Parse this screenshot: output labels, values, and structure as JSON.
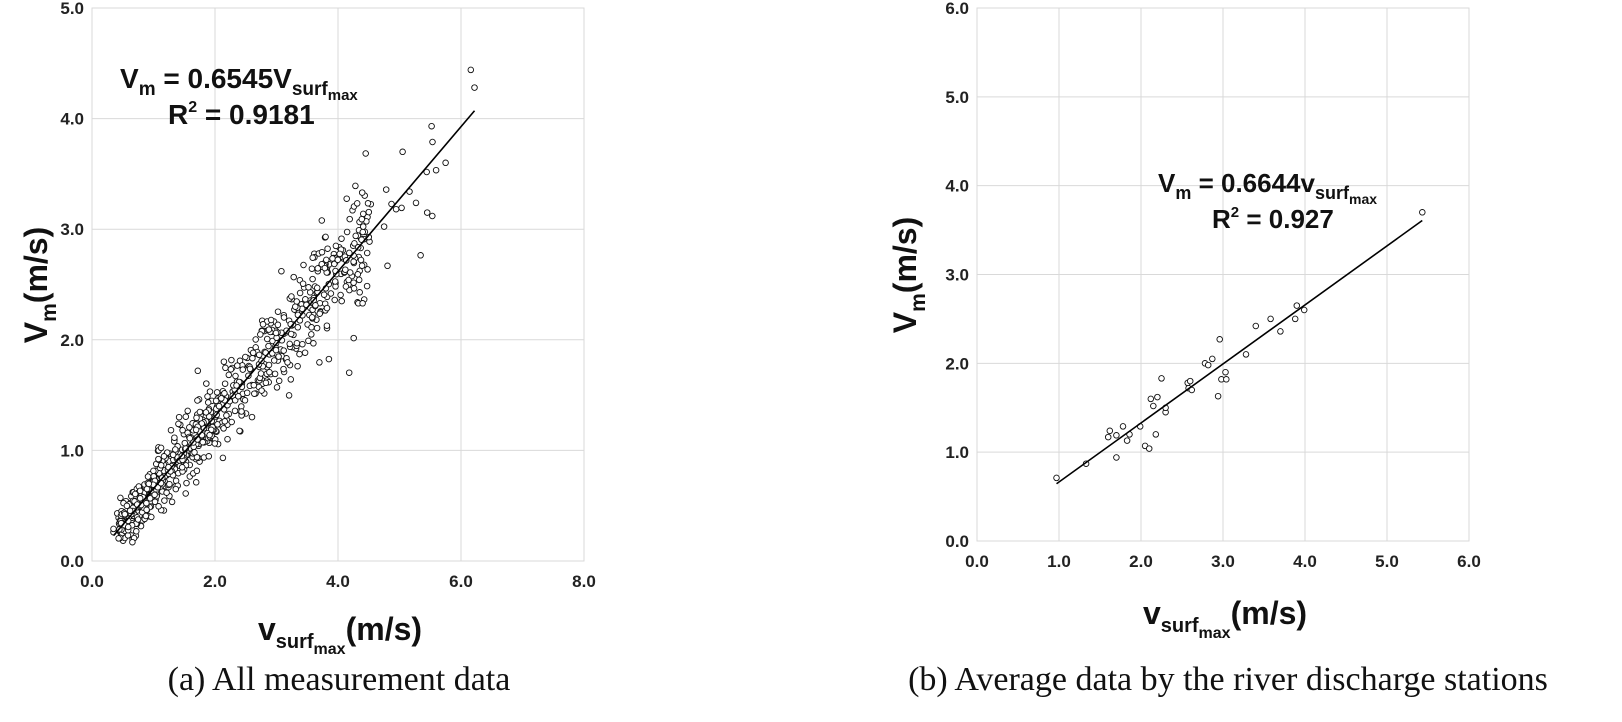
{
  "chart_data": [
    {
      "type": "scatter",
      "caption": "(a) All measurement data",
      "xlabel": {
        "main": "v",
        "sub": "surf",
        "subsub": "max",
        "unit": "(m/s)"
      },
      "ylabel": {
        "main": "V",
        "sub": "m",
        "unit": "(m/s)"
      },
      "xlim": [
        0,
        8
      ],
      "ylim": [
        0,
        5
      ],
      "xticks": [
        "0.0",
        "2.0",
        "4.0",
        "6.0",
        "8.0"
      ],
      "yticks": [
        "0.0",
        "1.0",
        "2.0",
        "3.0",
        "4.0",
        "5.0"
      ],
      "grid": true,
      "equation": {
        "lhs": "V",
        "lhs_sub": "m",
        "mid": " = 0.6545V",
        "rhs_sub": "surf",
        "rhs_subsub": "max"
      },
      "r2": {
        "label": "R",
        "sup": "2",
        "value": " = 0.9181"
      },
      "trendline": {
        "slope": 0.6545,
        "x_range": [
          0.35,
          6.22
        ]
      },
      "points_count": 800,
      "points_extremes": [
        [
          0.35,
          0.26
        ],
        [
          0.35,
          0.29
        ],
        [
          6.16,
          4.44
        ],
        [
          6.22,
          4.28
        ],
        [
          5.75,
          3.6
        ],
        [
          5.45,
          3.15
        ],
        [
          5.05,
          3.7
        ],
        [
          4.4,
          2.33
        ],
        [
          1.72,
          1.72
        ],
        [
          3.08,
          2.62
        ]
      ]
    },
    {
      "type": "scatter",
      "caption": "(b) Average data by the river discharge stations",
      "xlabel": {
        "main": "v",
        "sub": "surf",
        "subsub": "max",
        "unit": "(m/s)"
      },
      "ylabel": {
        "main": "V",
        "sub": "m",
        "unit": "(m/s)"
      },
      "xlim": [
        0,
        6
      ],
      "ylim": [
        0,
        6
      ],
      "xticks": [
        "0.0",
        "1.0",
        "2.0",
        "3.0",
        "4.0",
        "5.0",
        "6.0"
      ],
      "yticks": [
        "0.0",
        "1.0",
        "2.0",
        "3.0",
        "4.0",
        "5.0",
        "6.0"
      ],
      "grid": true,
      "equation": {
        "lhs": "V",
        "lhs_sub": "m",
        "mid": " = 0.6644v",
        "rhs_sub": "surf",
        "rhs_subsub": "max"
      },
      "r2": {
        "label": "R",
        "sup": "2",
        "value": " = 0.927"
      },
      "trendline": {
        "slope": 0.6644,
        "x_range": [
          0.97,
          5.43
        ]
      },
      "points": [
        [
          0.97,
          0.71
        ],
        [
          1.33,
          0.87
        ],
        [
          1.6,
          1.17
        ],
        [
          1.62,
          1.24
        ],
        [
          1.7,
          0.94
        ],
        [
          1.7,
          1.19
        ],
        [
          1.78,
          1.29
        ],
        [
          1.83,
          1.13
        ],
        [
          1.86,
          1.2
        ],
        [
          1.99,
          1.29
        ],
        [
          2.05,
          1.07
        ],
        [
          2.1,
          1.04
        ],
        [
          2.12,
          1.6
        ],
        [
          2.15,
          1.52
        ],
        [
          2.18,
          1.2
        ],
        [
          2.2,
          1.62
        ],
        [
          2.25,
          1.83
        ],
        [
          2.3,
          1.45
        ],
        [
          2.3,
          1.5
        ],
        [
          2.57,
          1.78
        ],
        [
          2.58,
          1.72
        ],
        [
          2.6,
          1.8
        ],
        [
          2.62,
          1.7
        ],
        [
          2.78,
          2.0
        ],
        [
          2.82,
          1.98
        ],
        [
          2.87,
          2.05
        ],
        [
          2.94,
          1.63
        ],
        [
          2.96,
          2.27
        ],
        [
          2.98,
          1.82
        ],
        [
          3.03,
          1.9
        ],
        [
          3.04,
          1.82
        ],
        [
          3.28,
          2.1
        ],
        [
          3.4,
          2.42
        ],
        [
          3.58,
          2.5
        ],
        [
          3.7,
          2.36
        ],
        [
          3.88,
          2.5
        ],
        [
          3.9,
          2.65
        ],
        [
          3.99,
          2.6
        ],
        [
          5.43,
          3.7
        ]
      ]
    }
  ]
}
